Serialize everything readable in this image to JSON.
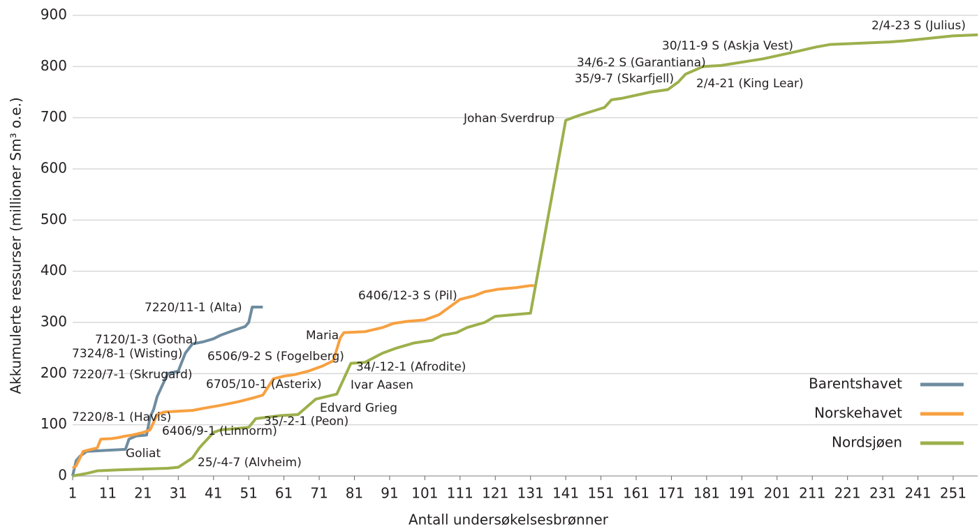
{
  "chart_data": {
    "type": "line",
    "step": true,
    "xlabel": "Antall undersøkelsesbrønner",
    "ylabel": "Akkumulerte ressurser (millioner Sm³ o.e.)",
    "xlim": [
      1,
      258
    ],
    "ylim": [
      0,
      900
    ],
    "xticks": [
      1,
      11,
      21,
      31,
      41,
      51,
      61,
      71,
      81,
      91,
      101,
      111,
      121,
      131,
      141,
      151,
      161,
      171,
      181,
      191,
      201,
      211,
      221,
      231,
      241,
      251
    ],
    "yticks": [
      0,
      100,
      200,
      300,
      400,
      500,
      600,
      700,
      800,
      900
    ],
    "grid": true,
    "legend": "lower right",
    "series": [
      {
        "name": "Barentshavet",
        "color": "#6e8ca0",
        "x": [
          1,
          2,
          3,
          5,
          16,
          17,
          19,
          22,
          23,
          24,
          25,
          27,
          28,
          31,
          33,
          35,
          38,
          41,
          43,
          45,
          47,
          50,
          51,
          52,
          55
        ],
        "values": [
          0,
          30,
          38,
          48,
          52,
          72,
          78,
          80,
          115,
          130,
          155,
          185,
          200,
          205,
          240,
          258,
          262,
          268,
          275,
          280,
          285,
          292,
          300,
          330,
          330
        ]
      },
      {
        "name": "Norskehavet",
        "color": "#f7a040",
        "x": [
          1,
          2,
          4,
          8,
          9,
          12,
          14,
          16,
          18,
          21,
          23,
          25,
          27,
          35,
          38,
          43,
          48,
          52,
          55,
          58,
          61,
          64,
          68,
          72,
          75,
          77,
          78,
          84,
          89,
          92,
          96,
          101,
          105,
          108,
          111,
          115,
          118,
          122,
          127,
          131,
          132
        ],
        "values": [
          15,
          20,
          48,
          55,
          72,
          73,
          75,
          78,
          80,
          85,
          90,
          120,
          125,
          128,
          132,
          138,
          145,
          152,
          158,
          190,
          195,
          198,
          205,
          215,
          225,
          270,
          280,
          282,
          290,
          298,
          302,
          305,
          315,
          330,
          345,
          352,
          360,
          365,
          368,
          372,
          372
        ]
      },
      {
        "name": "Nordsjøen",
        "color": "#9cb04c",
        "x": [
          1,
          5,
          8,
          14,
          28,
          31,
          35,
          37,
          41,
          43,
          51,
          53,
          60,
          65,
          70,
          73,
          76,
          78,
          80,
          84,
          89,
          93,
          98,
          103,
          106,
          110,
          113,
          118,
          121,
          126,
          131,
          141,
          143,
          145,
          152,
          154,
          157,
          165,
          170,
          173,
          175,
          180,
          185,
          197,
          207,
          212,
          216,
          233,
          237,
          251,
          258
        ],
        "values": [
          0,
          5,
          10,
          12,
          15,
          17,
          35,
          55,
          85,
          90,
          95,
          112,
          118,
          120,
          150,
          155,
          160,
          190,
          220,
          222,
          240,
          250,
          260,
          265,
          275,
          280,
          290,
          300,
          312,
          315,
          318,
          695,
          700,
          705,
          720,
          735,
          738,
          750,
          755,
          770,
          785,
          800,
          802,
          815,
          830,
          838,
          843,
          848,
          850,
          860,
          862
        ]
      }
    ],
    "annotations": [
      "2/4-23 S (Julius)",
      "30/11-9 S (Askja Vest)",
      "34/6-2 S (Garantiana)",
      "35/9-7 (Skarfjell)",
      "2/4-21 (King Lear)",
      "Johan Sverdrup",
      "6406/12-3 S (Pil)",
      "7220/11-1 (Alta)",
      "Maria",
      "7120/1-3 (Gotha)",
      "7324/8-1 (Wisting)",
      "6506/9-2 S (Fogelberg)",
      "34/-12-1 (Afrodite)",
      "7220/7-1 (Skrugard)",
      "6705/10-1 (Asterix)",
      "Ivar Aasen",
      "Edvard Grieg",
      "7220/8-1 (Havis)",
      "35/-2-1 (Peon)",
      "6406/9-1 (Linnorm)",
      "Goliat",
      "25/-4-7 (Alvheim)"
    ]
  }
}
